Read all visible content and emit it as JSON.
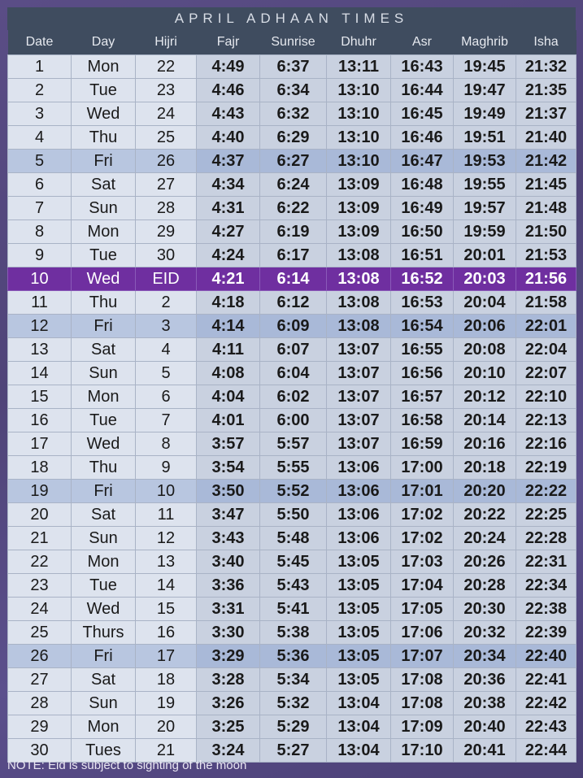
{
  "title": "APRIL ADHAAN TIMES",
  "columns": [
    "Date",
    "Day",
    "Hijri",
    "Fajr",
    "Sunrise",
    "Dhuhr",
    "Asr",
    "Maghrib",
    "Isha"
  ],
  "rows": [
    [
      "1",
      "Mon",
      "22",
      "4:49",
      "6:37",
      "13:11",
      "16:43",
      "19:45",
      "21:32"
    ],
    [
      "2",
      "Tue",
      "23",
      "4:46",
      "6:34",
      "13:10",
      "16:44",
      "19:47",
      "21:35"
    ],
    [
      "3",
      "Wed",
      "24",
      "4:43",
      "6:32",
      "13:10",
      "16:45",
      "19:49",
      "21:37"
    ],
    [
      "4",
      "Thu",
      "25",
      "4:40",
      "6:29",
      "13:10",
      "16:46",
      "19:51",
      "21:40"
    ],
    [
      "5",
      "Fri",
      "26",
      "4:37",
      "6:27",
      "13:10",
      "16:47",
      "19:53",
      "21:42"
    ],
    [
      "6",
      "Sat",
      "27",
      "4:34",
      "6:24",
      "13:09",
      "16:48",
      "19:55",
      "21:45"
    ],
    [
      "7",
      "Sun",
      "28",
      "4:31",
      "6:22",
      "13:09",
      "16:49",
      "19:57",
      "21:48"
    ],
    [
      "8",
      "Mon",
      "29",
      "4:27",
      "6:19",
      "13:09",
      "16:50",
      "19:59",
      "21:50"
    ],
    [
      "9",
      "Tue",
      "30",
      "4:24",
      "6:17",
      "13:08",
      "16:51",
      "20:01",
      "21:53"
    ],
    [
      "10",
      "Wed",
      "EID",
      "4:21",
      "6:14",
      "13:08",
      "16:52",
      "20:03",
      "21:56"
    ],
    [
      "11",
      "Thu",
      "2",
      "4:18",
      "6:12",
      "13:08",
      "16:53",
      "20:04",
      "21:58"
    ],
    [
      "12",
      "Fri",
      "3",
      "4:14",
      "6:09",
      "13:08",
      "16:54",
      "20:06",
      "22:01"
    ],
    [
      "13",
      "Sat",
      "4",
      "4:11",
      "6:07",
      "13:07",
      "16:55",
      "20:08",
      "22:04"
    ],
    [
      "14",
      "Sun",
      "5",
      "4:08",
      "6:04",
      "13:07",
      "16:56",
      "20:10",
      "22:07"
    ],
    [
      "15",
      "Mon",
      "6",
      "4:04",
      "6:02",
      "13:07",
      "16:57",
      "20:12",
      "22:10"
    ],
    [
      "16",
      "Tue",
      "7",
      "4:01",
      "6:00",
      "13:07",
      "16:58",
      "20:14",
      "22:13"
    ],
    [
      "17",
      "Wed",
      "8",
      "3:57",
      "5:57",
      "13:07",
      "16:59",
      "20:16",
      "22:16"
    ],
    [
      "18",
      "Thu",
      "9",
      "3:54",
      "5:55",
      "13:06",
      "17:00",
      "20:18",
      "22:19"
    ],
    [
      "19",
      "Fri",
      "10",
      "3:50",
      "5:52",
      "13:06",
      "17:01",
      "20:20",
      "22:22"
    ],
    [
      "20",
      "Sat",
      "11",
      "3:47",
      "5:50",
      "13:06",
      "17:02",
      "20:22",
      "22:25"
    ],
    [
      "21",
      "Sun",
      "12",
      "3:43",
      "5:48",
      "13:06",
      "17:02",
      "20:24",
      "22:28"
    ],
    [
      "22",
      "Mon",
      "13",
      "3:40",
      "5:45",
      "13:05",
      "17:03",
      "20:26",
      "22:31"
    ],
    [
      "23",
      "Tue",
      "14",
      "3:36",
      "5:43",
      "13:05",
      "17:04",
      "20:28",
      "22:34"
    ],
    [
      "24",
      "Wed",
      "15",
      "3:31",
      "5:41",
      "13:05",
      "17:05",
      "20:30",
      "22:38"
    ],
    [
      "25",
      "Thurs",
      "16",
      "3:30",
      "5:38",
      "13:05",
      "17:06",
      "20:32",
      "22:39"
    ],
    [
      "26",
      "Fri",
      "17",
      "3:29",
      "5:36",
      "13:05",
      "17:07",
      "20:34",
      "22:40"
    ],
    [
      "27",
      "Sat",
      "18",
      "3:28",
      "5:34",
      "13:05",
      "17:08",
      "20:36",
      "22:41"
    ],
    [
      "28",
      "Sun",
      "19",
      "3:26",
      "5:32",
      "13:04",
      "17:08",
      "20:38",
      "22:42"
    ],
    [
      "29",
      "Mon",
      "20",
      "3:25",
      "5:29",
      "13:04",
      "17:09",
      "20:40",
      "22:43"
    ],
    [
      "30",
      "Tues",
      "21",
      "3:24",
      "5:27",
      "13:04",
      "17:10",
      "20:41",
      "22:44"
    ]
  ],
  "friday_rows": [
    4,
    11,
    18,
    25
  ],
  "eid_row": 9,
  "note": "NOTE: Eid is subject to sighting of the moon",
  "colors": {
    "header": "#3f4c5f",
    "cell_light": "#dde3ee",
    "cell_bold": "#c9d1e0",
    "friday_light": "#b8c6e0",
    "friday_bold": "#a9b9d8",
    "eid_highlight": "#6f2fa0",
    "background": "#554a82"
  }
}
